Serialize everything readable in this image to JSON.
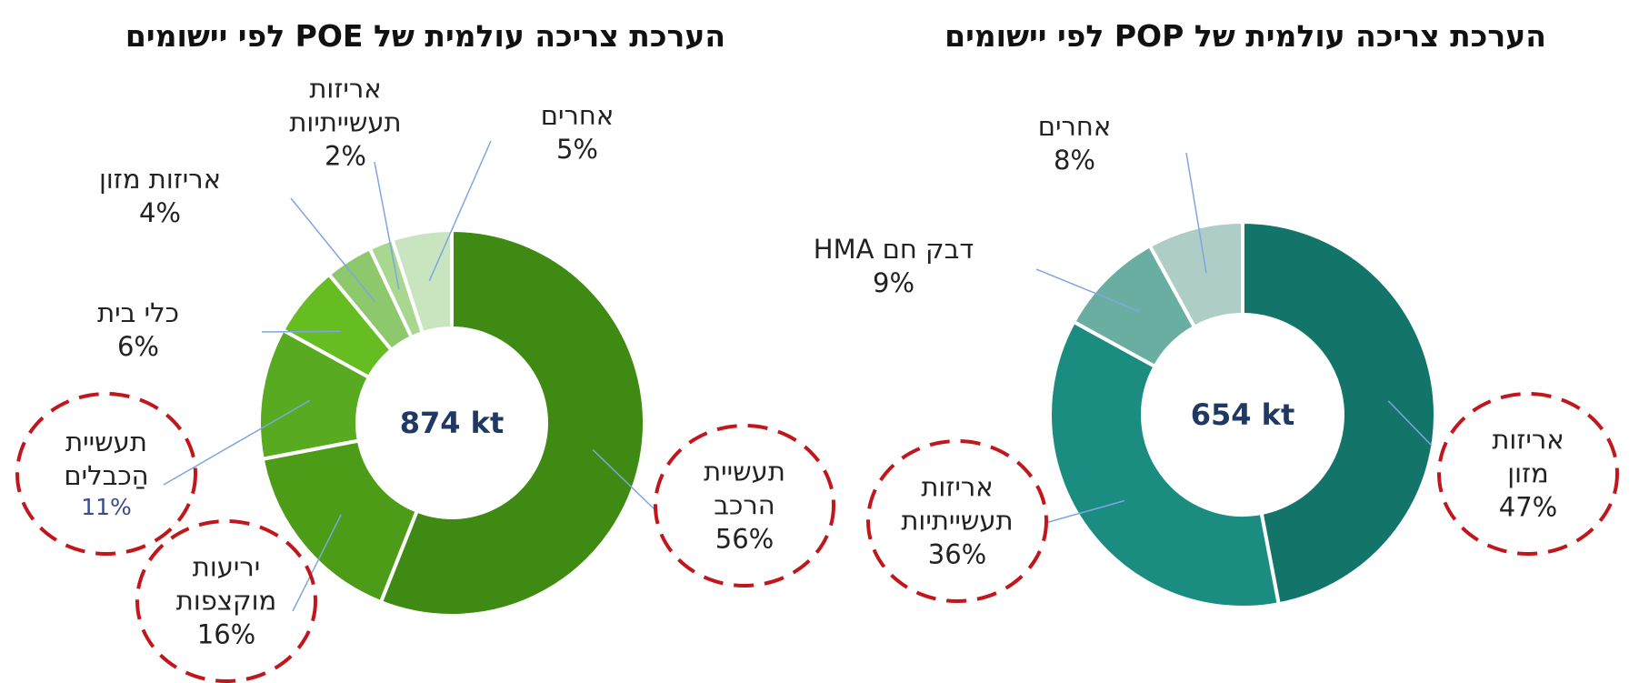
{
  "chart_data": [
    {
      "type": "donut",
      "title": "הערכת צריכה עולמית של POE לפי יישומים",
      "center_label": "874 kt",
      "categories": [
        "תעשיית\nהרכב",
        "יריעות\nמוקצפות",
        "תעשיית\nהַכבלים",
        "כלי בית",
        "אריזות מזון",
        "אריזות\nתעשייתיות",
        "אחרים"
      ],
      "values": [
        56,
        16,
        11,
        6,
        4,
        2,
        5
      ],
      "value_labels": [
        "56%",
        "16%",
        "11%",
        "6%",
        "4%",
        "2%",
        "5%"
      ],
      "colors": [
        "#3f8a12",
        "#4c9c18",
        "#58ab20",
        "#66bd22",
        "#8ec86c",
        "#a9d78f",
        "#c9e5c0"
      ]
    },
    {
      "type": "donut",
      "title": "הערכת צריכה עולמית של POP לפי יישומים",
      "center_label": "654 kt",
      "categories": [
        "אריזות\nמזון",
        "אריזות\nתעשייתיות",
        "דבק חם HMA",
        "אחרים"
      ],
      "values": [
        47,
        36,
        9,
        8
      ],
      "value_labels": [
        "47%",
        "36%",
        "9%",
        "8%"
      ],
      "colors": [
        "#13756a",
        "#1a8c80",
        "#6aaea2",
        "#aecdc6"
      ]
    }
  ]
}
